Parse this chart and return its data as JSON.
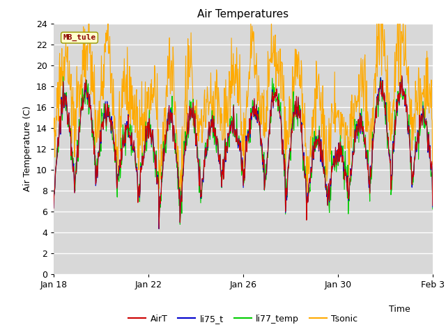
{
  "title": "Air Temperatures",
  "xlabel": "Time",
  "ylabel": "Air Temperature (C)",
  "ylim": [
    0,
    24
  ],
  "yticks": [
    0,
    2,
    4,
    6,
    8,
    10,
    12,
    14,
    16,
    18,
    20,
    22,
    24
  ],
  "xtick_labels": [
    "Jan 18",
    "Jan 22",
    "Jan 26",
    "Jan 30",
    "Feb 3"
  ],
  "legend_labels": [
    "AirT",
    "li75_t",
    "li77_temp",
    "Tsonic"
  ],
  "legend_colors": [
    "#cc0000",
    "#0000cc",
    "#00cc00",
    "#ffaa00"
  ],
  "series_colors": {
    "AirT": "#cc0000",
    "li75_t": "#0000cc",
    "li77_temp": "#00cc00",
    "Tsonic": "#ffaa00"
  },
  "annotation_text": "MB_tule",
  "annotation_color": "#8b0000",
  "annotation_bg": "#ffffcc",
  "plot_bg": "#d8d8d8",
  "fig_bg": "#ffffff",
  "grid_color": "#ffffff",
  "title_fontsize": 11,
  "axis_fontsize": 9,
  "tick_fontsize": 9
}
